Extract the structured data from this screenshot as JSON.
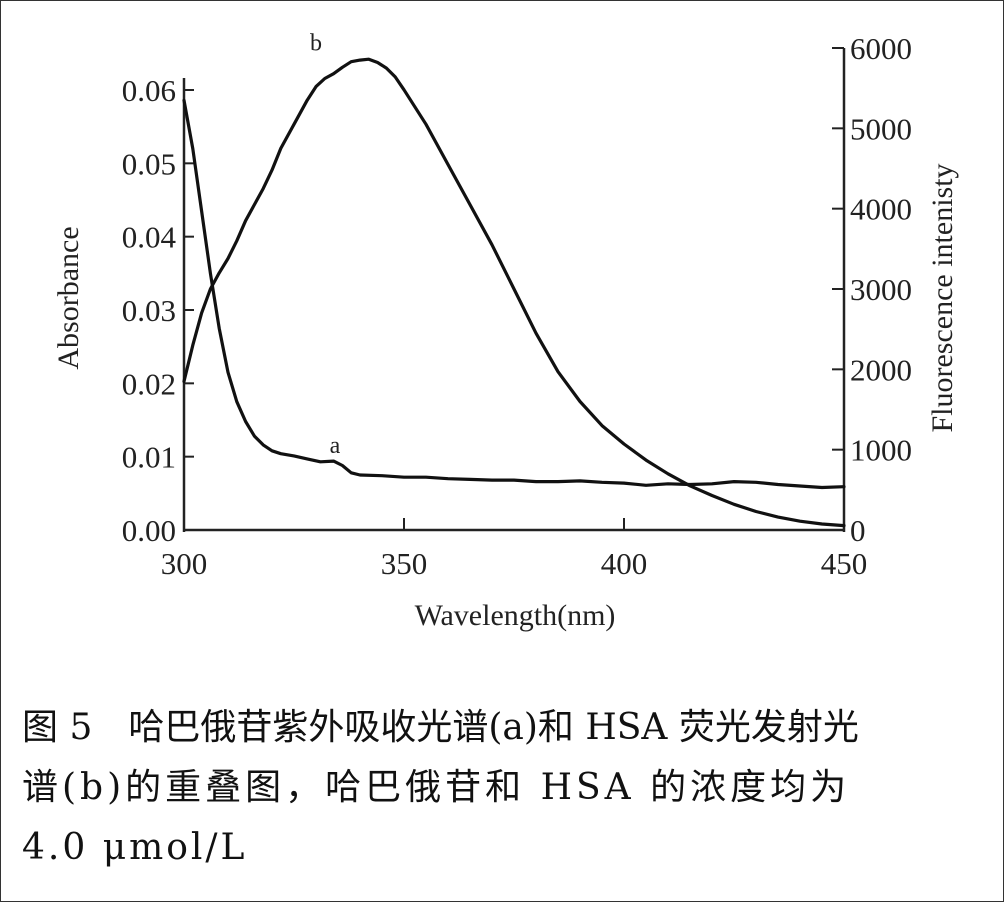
{
  "chart_data": {
    "type": "line",
    "x": {
      "label": "Wavelength(nm)",
      "range": [
        300,
        450
      ],
      "ticks": [
        300,
        350,
        400,
        450
      ]
    },
    "y_left": {
      "label": "Absorbance",
      "range": [
        0,
        0.06
      ],
      "ticks": [
        0.0,
        0.01,
        0.02,
        0.03,
        0.04,
        0.05,
        0.06
      ],
      "tick_labels": [
        "0.00",
        "0.01",
        "0.02",
        "0.03",
        "0.04",
        "0.05",
        "0.06"
      ]
    },
    "y_right": {
      "label": "Fluorescence  intenisty",
      "range": [
        0,
        6000
      ],
      "ticks": [
        0,
        1000,
        2000,
        3000,
        4000,
        5000,
        6000
      ],
      "tick_labels": [
        "0",
        "1000",
        "2000",
        "3000",
        "4000",
        "5000",
        "6000"
      ]
    },
    "series": [
      {
        "name": "a",
        "axis": "left",
        "points": [
          [
            300,
            0.0586
          ],
          [
            302,
            0.052
          ],
          [
            304,
            0.0435
          ],
          [
            306,
            0.035
          ],
          [
            308,
            0.0275
          ],
          [
            310,
            0.0215
          ],
          [
            312,
            0.0175
          ],
          [
            314,
            0.0148
          ],
          [
            316,
            0.0128
          ],
          [
            318,
            0.0116
          ],
          [
            320,
            0.0108
          ],
          [
            322,
            0.0104
          ],
          [
            325,
            0.0101
          ],
          [
            328,
            0.0097
          ],
          [
            331,
            0.0093
          ],
          [
            334,
            0.0094
          ],
          [
            336,
            0.0088
          ],
          [
            338,
            0.0078
          ],
          [
            340,
            0.0075
          ],
          [
            345,
            0.0074
          ],
          [
            350,
            0.0072
          ],
          [
            355,
            0.0072
          ],
          [
            360,
            0.007
          ],
          [
            365,
            0.0069
          ],
          [
            370,
            0.0068
          ],
          [
            375,
            0.0068
          ],
          [
            380,
            0.0066
          ],
          [
            385,
            0.0066
          ],
          [
            390,
            0.0067
          ],
          [
            395,
            0.0065
          ],
          [
            400,
            0.0064
          ],
          [
            405,
            0.0061
          ],
          [
            410,
            0.0063
          ],
          [
            415,
            0.0062
          ],
          [
            420,
            0.0063
          ],
          [
            425,
            0.0066
          ],
          [
            430,
            0.0065
          ],
          [
            435,
            0.0062
          ],
          [
            440,
            0.006
          ],
          [
            445,
            0.0058
          ],
          [
            450,
            0.0059
          ]
        ]
      },
      {
        "name": "b",
        "axis": "right",
        "points": [
          [
            300,
            1850
          ],
          [
            302,
            2300
          ],
          [
            304,
            2700
          ],
          [
            306,
            3000
          ],
          [
            308,
            3200
          ],
          [
            310,
            3380
          ],
          [
            312,
            3600
          ],
          [
            314,
            3850
          ],
          [
            316,
            4050
          ],
          [
            318,
            4250
          ],
          [
            320,
            4480
          ],
          [
            322,
            4750
          ],
          [
            325,
            5050
          ],
          [
            328,
            5350
          ],
          [
            330,
            5520
          ],
          [
            332,
            5620
          ],
          [
            334,
            5680
          ],
          [
            336,
            5760
          ],
          [
            338,
            5830
          ],
          [
            340,
            5850
          ],
          [
            342,
            5860
          ],
          [
            344,
            5820
          ],
          [
            346,
            5750
          ],
          [
            348,
            5640
          ],
          [
            350,
            5480
          ],
          [
            355,
            5050
          ],
          [
            360,
            4550
          ],
          [
            365,
            4050
          ],
          [
            370,
            3550
          ],
          [
            375,
            3000
          ],
          [
            380,
            2450
          ],
          [
            385,
            1970
          ],
          [
            390,
            1600
          ],
          [
            395,
            1300
          ],
          [
            400,
            1070
          ],
          [
            405,
            870
          ],
          [
            410,
            700
          ],
          [
            415,
            550
          ],
          [
            420,
            430
          ],
          [
            425,
            320
          ],
          [
            430,
            230
          ],
          [
            435,
            160
          ],
          [
            440,
            110
          ],
          [
            445,
            75
          ],
          [
            450,
            55
          ]
        ]
      }
    ]
  },
  "caption": {
    "line1": "图 5　哈巴俄苷紫外吸收光谱(a)和 HSA 荧光发射光",
    "line2": "谱(b)的重叠图，哈巴俄苷和 HSA 的浓度均为",
    "line3": "4.0 μmol/L"
  },
  "colors": {
    "line": "#111111",
    "axis": "#222222",
    "background": "#ffffff"
  }
}
